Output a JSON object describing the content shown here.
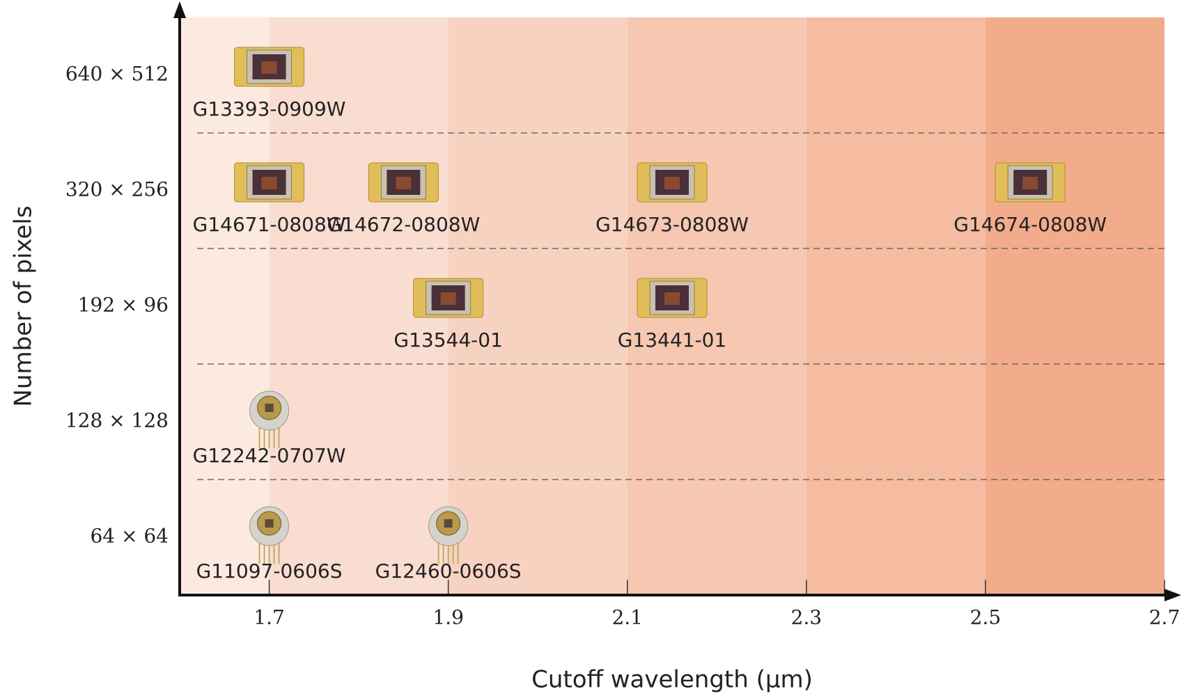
{
  "chart_data": {
    "type": "scatter",
    "xlabel": "Cutoff wavelength (μm)",
    "ylabel": "Number of pixels",
    "xlim": [
      1.6,
      2.7
    ],
    "xticks": [
      1.7,
      1.9,
      2.1,
      2.3,
      2.5,
      2.7
    ],
    "ylim": [
      0.5,
      5.5
    ],
    "yticks": [
      {
        "value": 1,
        "label": "64 × 64"
      },
      {
        "value": 2,
        "label": "128 × 128"
      },
      {
        "value": 3,
        "label": "192 × 96"
      },
      {
        "value": 4,
        "label": "320 × 256"
      },
      {
        "value": 5,
        "label": "640 × 512"
      }
    ],
    "grid_lines": [
      1.5,
      2.5,
      3.5,
      4.5
    ],
    "bands": [
      {
        "from": 1.6,
        "to": 1.7,
        "color": "#fce9e0"
      },
      {
        "from": 1.7,
        "to": 1.9,
        "color": "#f9ddd0"
      },
      {
        "from": 1.9,
        "to": 2.1,
        "color": "#f8d2c1"
      },
      {
        "from": 2.1,
        "to": 2.3,
        "color": "#f6c7b1"
      },
      {
        "from": 2.3,
        "to": 2.5,
        "color": "#f5bca2"
      },
      {
        "from": 2.5,
        "to": 2.7,
        "color": "#f2ac8c"
      }
    ],
    "points": [
      {
        "name": "G13393-0909W",
        "x": 1.7,
        "y": 5,
        "marker": "square"
      },
      {
        "name": "G14671-0808W",
        "x": 1.7,
        "y": 4,
        "marker": "square"
      },
      {
        "name": "G14672-0808W",
        "x": 1.85,
        "y": 4,
        "marker": "square"
      },
      {
        "name": "G14673-0808W",
        "x": 2.15,
        "y": 4,
        "marker": "square"
      },
      {
        "name": "G14674-0808W",
        "x": 2.55,
        "y": 4,
        "marker": "square"
      },
      {
        "name": "G13544-01",
        "x": 1.9,
        "y": 3,
        "marker": "square"
      },
      {
        "name": "G13441-01",
        "x": 2.15,
        "y": 3,
        "marker": "square"
      },
      {
        "name": "G12242-0707W",
        "x": 1.7,
        "y": 2,
        "marker": "round"
      },
      {
        "name": "G11097-0606S",
        "x": 1.7,
        "y": 1,
        "marker": "round"
      },
      {
        "name": "G12460-0606S",
        "x": 1.9,
        "y": 1,
        "marker": "round"
      }
    ]
  }
}
